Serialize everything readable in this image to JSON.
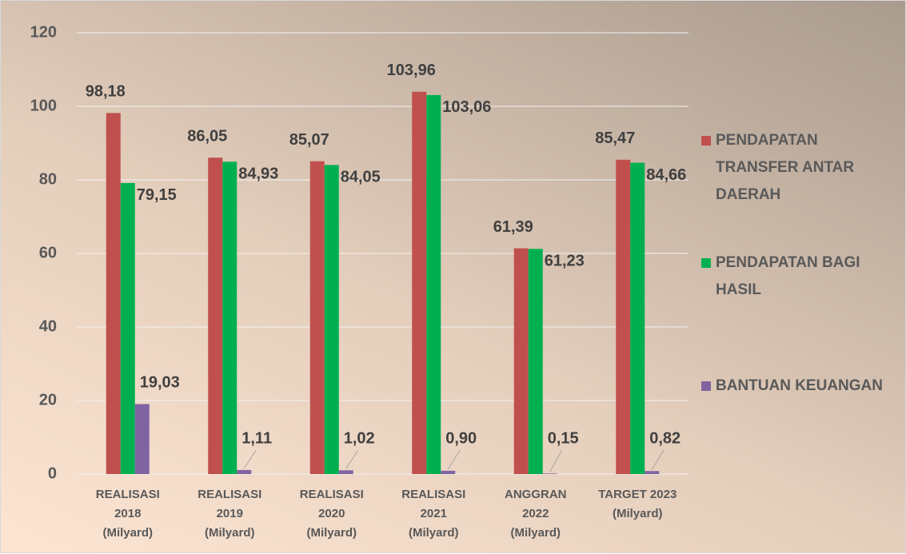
{
  "chart_data": {
    "type": "bar",
    "categories": [
      [
        "REALISASI",
        "2018",
        "(Milyard)"
      ],
      [
        "REALISASI",
        "2019",
        "(Milyard)"
      ],
      [
        "REALISASI",
        "2020",
        "(Milyard)"
      ],
      [
        "REALISASI",
        "2021",
        "(Milyard)"
      ],
      [
        "ANGGRAN",
        "2022",
        "(Milyard)"
      ],
      [
        "TARGET 2023",
        "(Milyard)"
      ]
    ],
    "series": [
      {
        "name": "PENDAPATAN TRANSFER ANTAR DAERAH",
        "color": "#c0504d",
        "values": [
          98.18,
          86.05,
          85.07,
          103.96,
          61.39,
          85.47
        ],
        "value_labels": [
          "98,18",
          "86,05",
          "85,07",
          "103,96",
          "61,39",
          "85,47"
        ]
      },
      {
        "name": "PENDAPATAN BAGI HASIL",
        "color": "#00b050",
        "values": [
          79.15,
          84.93,
          84.05,
          103.06,
          61.23,
          84.66
        ],
        "value_labels": [
          "79,15",
          "84,93",
          "84,05",
          "103,06",
          "61,23",
          "84,66"
        ]
      },
      {
        "name": "BANTUAN KEUANGAN",
        "color": "#8064a2",
        "values": [
          19.03,
          1.11,
          1.02,
          0.9,
          0.15,
          0.82
        ],
        "value_labels": [
          "19,03",
          "1,11",
          "1,02",
          "0,90",
          "0,15",
          "0,82"
        ]
      }
    ],
    "ylim": [
      0,
      120
    ],
    "yticks": [
      0,
      20,
      40,
      60,
      80,
      100,
      120
    ],
    "grid": true,
    "legend": "right"
  }
}
